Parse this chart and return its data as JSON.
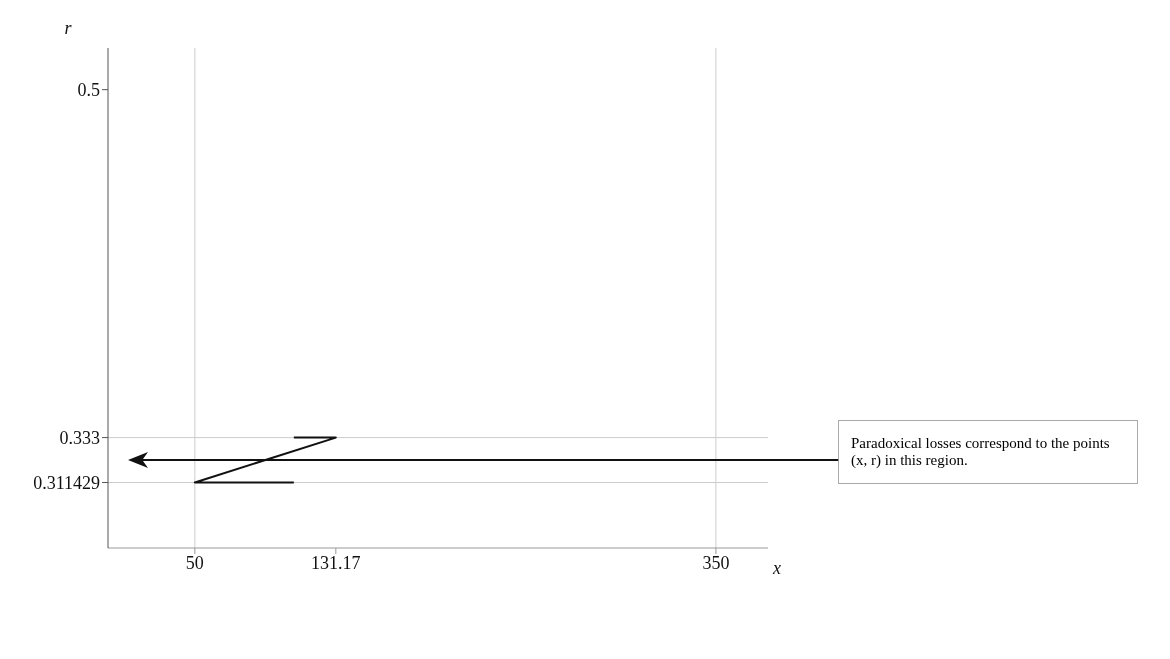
{
  "chart_data": {
    "type": "line",
    "xlabel": "x",
    "ylabel": "r",
    "xlim": [
      0,
      380
    ],
    "xticks": [
      50,
      131.17,
      350
    ],
    "ylim": [
      0.28,
      0.52
    ],
    "yticks": [
      0.311429,
      0.333,
      0.5
    ],
    "series": [
      {
        "color": "#111111",
        "x": [
          107,
          131.17,
          50,
          107
        ],
        "values": [
          0.333,
          0.333,
          0.311429,
          0.311429
        ]
      }
    ],
    "ref_lines": [
      {
        "axis": "y",
        "value": 0.333,
        "color": "#cccccc"
      },
      {
        "axis": "y",
        "value": 0.311429,
        "color": "#cccccc"
      },
      {
        "axis": "x",
        "value": 50,
        "color": "#cccccc"
      },
      {
        "axis": "x",
        "value": 350,
        "color": "#cccccc"
      }
    ],
    "annotations": [
      "Paradoxical losses correspond to the points (x, r) in this region."
    ]
  }
}
